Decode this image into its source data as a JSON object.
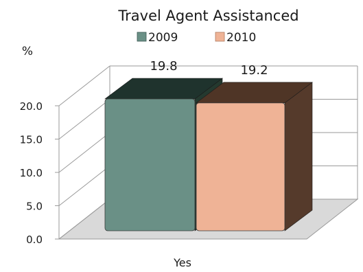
{
  "chart_data": {
    "type": "bar",
    "title": "Travel Agent Assistanced",
    "ylabel": "%",
    "xlabel": "",
    "categories": [
      "Yes"
    ],
    "series": [
      {
        "name": "2009",
        "values": [
          19.8
        ],
        "color": "#6a9086"
      },
      {
        "name": "2010",
        "values": [
          19.2
        ],
        "color": "#efb396"
      }
    ],
    "data_labels": [
      "19.8",
      "19.2"
    ],
    "ylim": [
      0,
      20
    ],
    "yticks": [
      0,
      5,
      10,
      15,
      20
    ],
    "ytick_labels": [
      "0.0",
      "5.0",
      "10.0",
      "15.0",
      "20.0"
    ],
    "grid": true,
    "legend": "top",
    "style": "3d",
    "colors": {
      "top_2009": "#1f332d",
      "side_2009": "#24392f",
      "top_2010": "#4f3526",
      "side_2010": "#553a2b",
      "floor": "#d9d9d9",
      "grid": "#999999"
    }
  }
}
